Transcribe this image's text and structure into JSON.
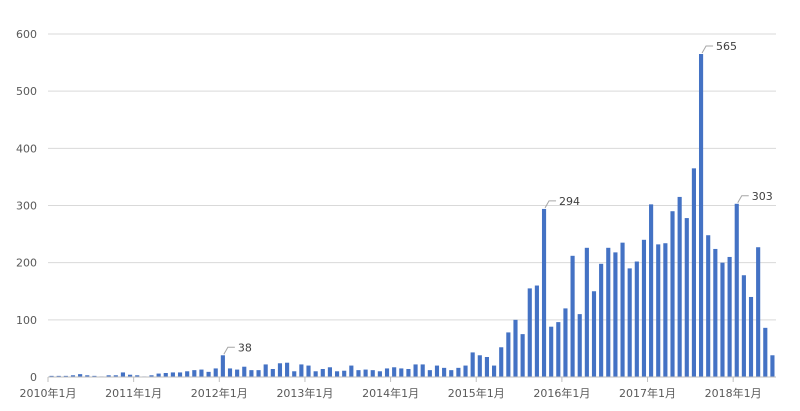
{
  "chart_data": {
    "type": "bar",
    "title": "",
    "xlabel": "",
    "ylabel": "",
    "ylim": [
      0,
      600
    ],
    "y_ticks": [
      "0",
      "100",
      "200",
      "300",
      "400",
      "500",
      "600"
    ],
    "grid": true,
    "legend": "none",
    "bar_color": "#4472c4",
    "x_tick_labels": [
      {
        "month_index": 0,
        "label": "2010年1月"
      },
      {
        "month_index": 12,
        "label": "2011年1月"
      },
      {
        "month_index": 24,
        "label": "2012年1月"
      },
      {
        "month_index": 36,
        "label": "2013年1月"
      },
      {
        "month_index": 48,
        "label": "2014年1月"
      },
      {
        "month_index": 60,
        "label": "2015年1月"
      },
      {
        "month_index": 72,
        "label": "2016年1月"
      },
      {
        "month_index": 84,
        "label": "2017年1月"
      },
      {
        "month_index": 96,
        "label": "2018年1月"
      }
    ],
    "values": [
      2,
      2,
      2,
      3,
      5,
      3,
      2,
      1,
      3,
      3,
      8,
      4,
      3,
      1,
      3,
      6,
      7,
      8,
      8,
      10,
      12,
      13,
      9,
      15,
      38,
      15,
      13,
      18,
      12,
      12,
      22,
      14,
      24,
      25,
      10,
      22,
      20,
      10,
      14,
      17,
      10,
      11,
      20,
      12,
      13,
      12,
      10,
      15,
      17,
      15,
      14,
      22,
      22,
      12,
      20,
      16,
      12,
      16,
      20,
      43,
      38,
      35,
      20,
      52,
      78,
      100,
      75,
      155,
      160,
      294,
      88,
      96,
      120,
      212,
      110,
      226,
      150,
      198,
      226,
      218,
      235,
      190,
      202,
      240,
      302,
      232,
      234,
      290,
      315,
      278,
      365,
      565,
      248,
      224,
      200,
      210,
      303,
      178,
      140,
      227,
      86,
      38
    ],
    "annotations": [
      {
        "month_index": 24,
        "text": "38"
      },
      {
        "month_index": 69,
        "text": "294"
      },
      {
        "month_index": 91,
        "text": "565"
      },
      {
        "month_index": 96,
        "text": "303"
      }
    ]
  }
}
